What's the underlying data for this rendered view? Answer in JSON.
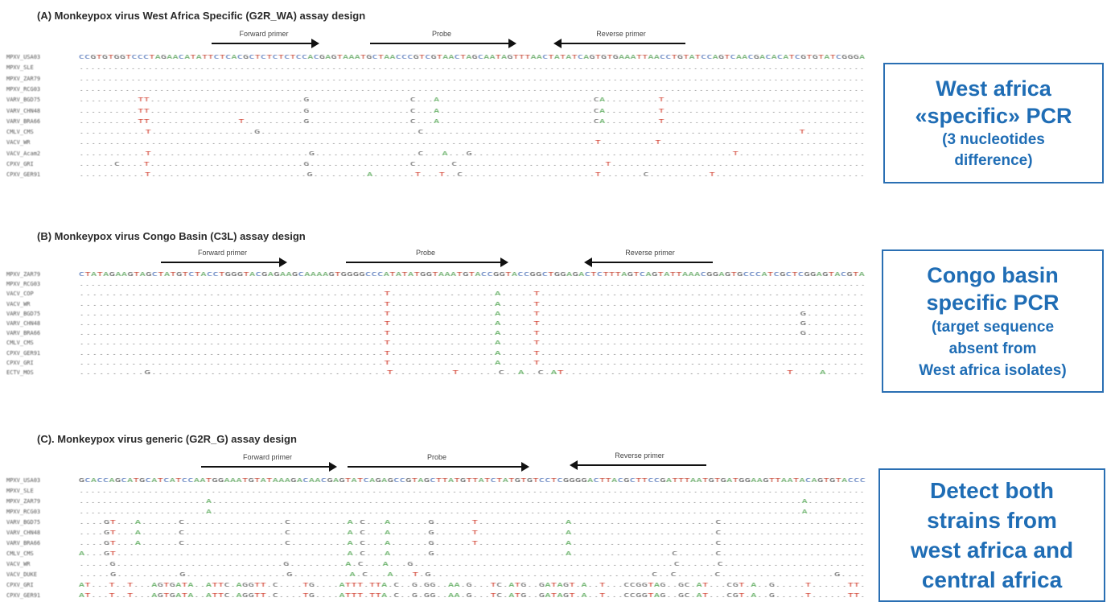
{
  "panels": [
    {
      "title": "(A) Monkeypox virus West Africa Specific (G2R_WA) assay design",
      "forward_label": "Forward primer",
      "probe_label": "Probe",
      "reverse_label": "Reverse primer",
      "rows": [
        {
          "name": "MPXV_USA03",
          "seq": "CCGTGTGGTCCCTAGAACATATTCTCACGCTCTCTCTCCACGAGTAAATGCTAACCCGTCGTAACTAGCAATAGTTTAACTATATCAGTGTGAAATTAACCTGTATCCAGTCAACGACACATCGTGTATCGGGA",
          "marks": []
        },
        {
          "name": "MPXV_SLE",
          "seq": ".........................................................................................................................................",
          "marks": []
        },
        {
          "name": "MPXV_ZAR79",
          "seq": ".........................................................................................................................................",
          "marks": []
        },
        {
          "name": "MPXV_RCG03",
          "seq": ".........................................................................................................................................",
          "marks": []
        },
        {
          "name": "VARV_BGD75",
          "seq": "..........TT..........................G.................C...A..........................CA.........T..................................",
          "marks": []
        },
        {
          "name": "VARV_CHN48",
          "seq": "..........TT..........................G.................C...A..........................CA.........T..................................",
          "marks": []
        },
        {
          "name": "VARV_BRA66",
          "seq": "..........TT...............T..........G.................C...A..........................CA.........T..................................",
          "marks": []
        },
        {
          "name": "CMLV_CMS",
          "seq": "...........T.................G..........................C..............................................................T..........",
          "marks": []
        },
        {
          "name": "VACV_WR",
          "seq": "......................................................................................T.........T..................................",
          "marks": []
        },
        {
          "name": "VACV_Acam2",
          "seq": "...........T..........................G.................C...A...G...........................................T.....................",
          "marks": []
        },
        {
          "name": "CPXV_GRI",
          "seq": "......C....T..........................G.................C......C.........................T...........................................",
          "marks": []
        },
        {
          "name": "CPXV_GER91",
          "seq": "...........T..........................G.........A.......T...T..C......................T.......C..........T.........................",
          "marks": []
        }
      ]
    },
    {
      "title": "(B) Monkeypox virus Congo Basin (C3L) assay design",
      "forward_label": "Forward primer",
      "probe_label": "Probe",
      "reverse_label": "Reverse primer",
      "rows": [
        {
          "name": "MPXV_ZAR79",
          "seq": "CTATAGAAGTAGCTATGTCTACCTGGGTACGAGAAGCAAAAGTGGGGCCCATATATGGTAAATGTACCGGTACCGGCTGGAGACTCTTTAGTCAGTATTAAACGGAGTGCCCATCGCTCGGAGTACGTA",
          "marks": []
        },
        {
          "name": "MPXV_RCG03",
          "seq": ".......................................................................................................................................",
          "marks": []
        },
        {
          "name": "VACV_COP",
          "seq": "...............................................T................A.....T..................................................",
          "marks": []
        },
        {
          "name": "VACV_WR",
          "seq": "...............................................T................A.....T..................................................",
          "marks": []
        },
        {
          "name": "VARV_BGD75",
          "seq": "...............................................T................A.....T........................................G.........",
          "marks": []
        },
        {
          "name": "VARV_CHN48",
          "seq": "...............................................T................A.....T........................................G.........",
          "marks": []
        },
        {
          "name": "VARV_BRA66",
          "seq": "...............................................T................A.....T........................................G.........",
          "marks": []
        },
        {
          "name": "CMLV_CMS",
          "seq": "...............................................T................A.....T..................................................",
          "marks": []
        },
        {
          "name": "CPXV_GER91",
          "seq": "...............................................T................A.....T..................................................",
          "marks": []
        },
        {
          "name": "CPXV_GRI",
          "seq": "...............................................T................A.....T..................................................",
          "marks": []
        },
        {
          "name": "ECTV_MOS",
          "seq": "..........G....................................T.........T......C..A..C.AT..................................T....A......",
          "marks": []
        }
      ]
    },
    {
      "title": "(C). Monkeypox virus generic (G2R_G) assay design",
      "forward_label": "Forward primer",
      "probe_label": "Probe",
      "reverse_label": "Reverse primer",
      "rows": [
        {
          "name": "MPXV_USA03",
          "seq": "GCACCAGCATGCATCATCCAATGGAAATGTATAAAGACAACGAGTATCAGAGCCGTAGCTTATGTTATCTATGTGTCCTCGGGGACTTACGCTTCCGATTTAATGTGATGGAAGTTAATACAGTGTACCC",
          "marks": []
        },
        {
          "name": "MPXV_SLE",
          "seq": ".........................................................................................................................................",
          "marks": []
        },
        {
          "name": "MPXV_ZAR79",
          "seq": "......................A......................................................................................................A..........",
          "marks": []
        },
        {
          "name": "MPXV_RCG03",
          "seq": "......................A......................................................................................................A..........",
          "marks": []
        },
        {
          "name": "VARV_BGD75",
          "seq": "....GT...A......C................C.........A.C...A......G......T..............A.......................C.......................",
          "marks": []
        },
        {
          "name": "VARV_CHN48",
          "seq": "....GT...A......C................C.........A.C...A......G......T..............A.......................C.......................",
          "marks": []
        },
        {
          "name": "VARV_BRA66",
          "seq": "....GT...A......C................C.........A.C...A......G......T..............A.......................C.......................",
          "marks": []
        },
        {
          "name": "CMLV_CMS",
          "seq": "A...GT.....................................A.C...A......G.....................A................C......C.......................",
          "marks": []
        },
        {
          "name": "VACV_WR",
          "seq": ".....G...........................G.........A.C...A...G..........................................C......C.......................",
          "marks": []
        },
        {
          "name": "VACV_DUKE",
          "seq": ".....G..........G................G.........A.C...A...T.G...................................C..C......C..................G....",
          "marks": []
        },
        {
          "name": "CPXV_GRI",
          "seq": "AT...T..T...AGTGATA..ATTC.AGGTT.C....TG....ATTT.TTA.C..G.GG..AA.G...TC.ATG..GATAGT.A..T...CCGGTAG..GC.AT...CGT.A..G.....T......TT.",
          "marks": []
        },
        {
          "name": "CPXV_GER91",
          "seq": "AT...T..T...AGTGATA..ATTC.AGGTT.C....TG....ATTT.TTA.C..G.GG..AA.G...TC.ATG..GATAGT.A..T...CCGGTAG..GC.AT...CGT.A..G.....T......TT.",
          "marks": []
        }
      ]
    }
  ],
  "callouts": [
    {
      "lines": [
        "West africa",
        "«specific» PCR"
      ],
      "sub": [
        "(3 nucleotides",
        "difference)"
      ]
    },
    {
      "lines": [
        "Congo basin",
        "specific PCR"
      ],
      "sub": [
        "(target sequence",
        "absent from",
        "West africa isolates)"
      ]
    },
    {
      "lines": [
        "Detect both",
        "strains from",
        "west africa and",
        "central africa"
      ],
      "sub": []
    }
  ],
  "colors": {
    "accent": "#1f6db5",
    "box_border": "#2a6fb3",
    "mismatch_red": "#d03a2a",
    "mismatch_green": "#3d9a3d"
  }
}
